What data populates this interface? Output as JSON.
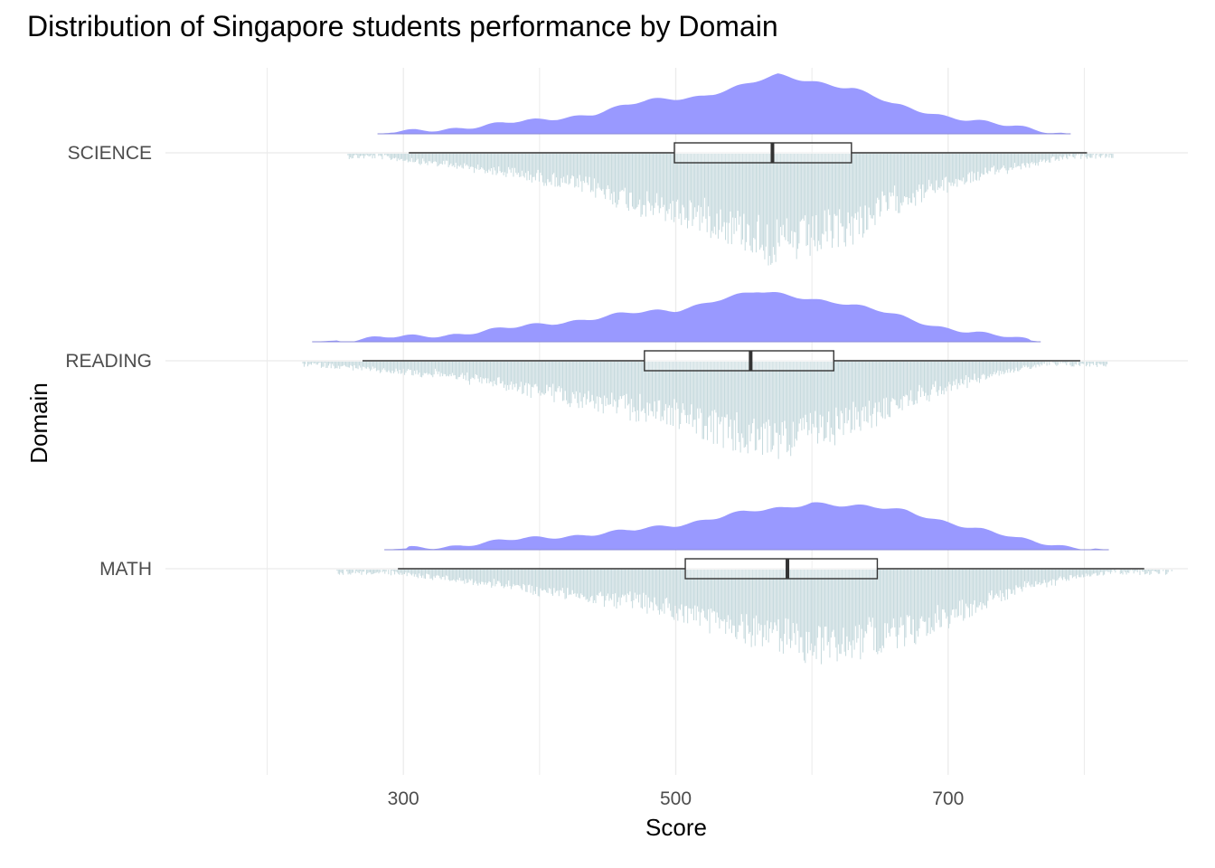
{
  "chart_data": {
    "type": "raincloud",
    "title": "Distribution of Singapore students performance by Domain",
    "xlabel": "Score",
    "ylabel": "Domain",
    "x_ticks": [
      300,
      500,
      700
    ],
    "xlim": [
      165,
      875
    ],
    "grid": true,
    "legend": "none",
    "colors": {
      "density": "#9999ff",
      "dots": "#c5d9dd",
      "box": "#333333",
      "grid": "#ebebeb"
    },
    "categories": [
      "SCIENCE",
      "READING",
      "MATH"
    ],
    "series": [
      {
        "name": "SCIENCE",
        "box": {
          "min": 304,
          "q1": 499,
          "median": 571,
          "q3": 629,
          "max": 802
        },
        "density_range": [
          281,
          790
        ],
        "density_profile": [
          [
            281,
            0.0
          ],
          [
            320,
            0.06
          ],
          [
            360,
            0.12
          ],
          [
            400,
            0.2
          ],
          [
            440,
            0.3
          ],
          [
            480,
            0.48
          ],
          [
            520,
            0.56
          ],
          [
            550,
            0.7
          ],
          [
            575,
            0.85
          ],
          [
            600,
            0.78
          ],
          [
            630,
            0.66
          ],
          [
            660,
            0.42
          ],
          [
            700,
            0.26
          ],
          [
            740,
            0.12
          ],
          [
            790,
            0.0
          ]
        ]
      },
      {
        "name": "READING",
        "box": {
          "min": 270,
          "q1": 477,
          "median": 555,
          "q3": 616,
          "max": 797
        },
        "density_range": [
          233,
          768
        ],
        "density_profile": [
          [
            233,
            0.0
          ],
          [
            280,
            0.05
          ],
          [
            330,
            0.1
          ],
          [
            380,
            0.2
          ],
          [
            420,
            0.3
          ],
          [
            460,
            0.4
          ],
          [
            500,
            0.46
          ],
          [
            530,
            0.62
          ],
          [
            560,
            0.72
          ],
          [
            590,
            0.66
          ],
          [
            620,
            0.58
          ],
          [
            650,
            0.44
          ],
          [
            690,
            0.24
          ],
          [
            730,
            0.1
          ],
          [
            768,
            0.0
          ]
        ]
      },
      {
        "name": "MATH",
        "box": {
          "min": 296,
          "q1": 507,
          "median": 582,
          "q3": 648,
          "max": 844
        },
        "density_range": [
          286,
          818
        ],
        "density_profile": [
          [
            286,
            0.0
          ],
          [
            330,
            0.05
          ],
          [
            380,
            0.14
          ],
          [
            430,
            0.22
          ],
          [
            470,
            0.28
          ],
          [
            500,
            0.36
          ],
          [
            540,
            0.52
          ],
          [
            580,
            0.6
          ],
          [
            600,
            0.7
          ],
          [
            630,
            0.64
          ],
          [
            670,
            0.56
          ],
          [
            710,
            0.36
          ],
          [
            750,
            0.16
          ],
          [
            790,
            0.05
          ],
          [
            818,
            0.0
          ]
        ]
      }
    ]
  }
}
